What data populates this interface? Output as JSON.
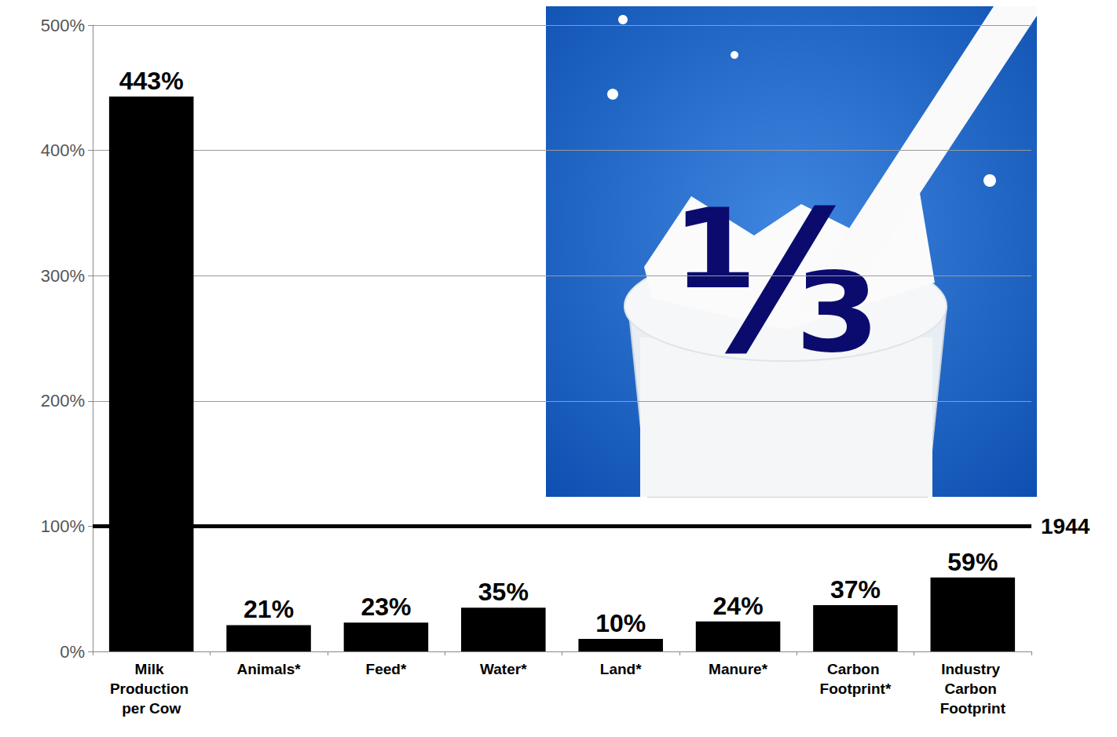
{
  "chart_data": {
    "type": "bar",
    "categories": [
      "Milk Production per Cow",
      "Animals*",
      "Feed*",
      "Water*",
      "Land*",
      "Manure*",
      "Carbon Footprint*",
      "Industry Carbon Footprint"
    ],
    "values": [
      443,
      21,
      23,
      35,
      10,
      24,
      37,
      59
    ],
    "value_labels": [
      "443%",
      "21%",
      "23%",
      "35%",
      "10%",
      "24%",
      "37%",
      "59%"
    ],
    "color": "#000000",
    "ylim": [
      0,
      500
    ],
    "yticks": [
      {
        "value": 0,
        "label": "0%"
      },
      {
        "value": 100,
        "label": "100%"
      },
      {
        "value": 200,
        "label": "200%"
      },
      {
        "value": 300,
        "label": "300%"
      },
      {
        "value": 400,
        "label": "400%"
      },
      {
        "value": 500,
        "label": "500%"
      }
    ],
    "grid": true,
    "data_labels": true,
    "annotations": [
      {
        "y": 100,
        "text": "1944"
      },
      {
        "text": "⅓"
      }
    ]
  }
}
